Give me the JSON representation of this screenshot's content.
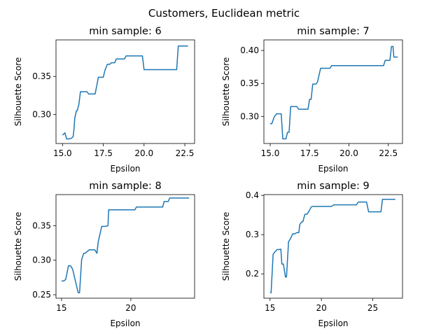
{
  "figure": {
    "title": "Customers, Euclidean metric",
    "line_color": "#1f77b4"
  },
  "chart_data": [
    {
      "type": "line",
      "title": "min sample: 6",
      "xlabel": "Epsilon",
      "ylabel": "Silhouette Score",
      "xticks": [
        15.0,
        17.5,
        20.0,
        22.5
      ],
      "xtick_labels": [
        "15.0",
        "17.5",
        "20.0",
        "22.5"
      ],
      "yticks": [
        0.3,
        0.35
      ],
      "ytick_labels": [
        "0.30",
        "0.35"
      ],
      "xlim": [
        14.6,
        23.1
      ],
      "ylim": [
        0.262,
        0.398
      ],
      "series": [
        {
          "x": [
            15.0,
            15.15,
            15.25,
            15.4,
            15.55,
            15.65,
            15.7,
            15.75,
            15.85,
            15.9,
            16.0,
            16.1,
            16.5,
            16.6,
            17.0,
            17.1,
            17.2,
            17.5,
            17.6,
            17.75,
            17.9,
            18.0,
            18.2,
            18.3,
            18.5,
            18.8,
            18.9,
            19.1,
            19.9,
            20.0,
            22.0,
            22.1,
            22.7
          ],
          "y": [
            0.273,
            0.276,
            0.268,
            0.268,
            0.269,
            0.271,
            0.28,
            0.295,
            0.305,
            0.305,
            0.313,
            0.33,
            0.33,
            0.327,
            0.327,
            0.338,
            0.349,
            0.349,
            0.358,
            0.366,
            0.366,
            0.368,
            0.368,
            0.373,
            0.373,
            0.373,
            0.377,
            0.377,
            0.377,
            0.359,
            0.359,
            0.39,
            0.39
          ]
        }
      ]
    },
    {
      "type": "line",
      "title": "min sample: 7",
      "xlabel": "Epsilon",
      "ylabel": "Silhouette Score",
      "xticks": [
        15.0,
        17.5,
        20.0,
        22.5
      ],
      "xtick_labels": [
        "15.0",
        "17.5",
        "20.0",
        "22.5"
      ],
      "yticks": [
        0.3,
        0.35,
        0.4
      ],
      "ytick_labels": [
        "0.30",
        "0.35",
        "0.40"
      ],
      "xlim": [
        14.6,
        23.4
      ],
      "ylim": [
        0.259,
        0.416
      ],
      "series": [
        {
          "x": [
            15.0,
            15.1,
            15.25,
            15.4,
            15.7,
            15.8,
            16.0,
            16.1,
            16.2,
            16.3,
            16.7,
            16.8,
            17.4,
            17.5,
            17.6,
            17.7,
            17.9,
            18.0,
            18.2,
            18.3,
            18.8,
            18.9,
            22.2,
            22.3,
            22.6,
            22.7,
            22.8,
            22.85,
            23.1
          ],
          "y": [
            0.289,
            0.289,
            0.299,
            0.304,
            0.304,
            0.266,
            0.266,
            0.276,
            0.276,
            0.315,
            0.315,
            0.311,
            0.311,
            0.326,
            0.326,
            0.349,
            0.349,
            0.352,
            0.373,
            0.373,
            0.373,
            0.377,
            0.377,
            0.385,
            0.385,
            0.406,
            0.406,
            0.39,
            0.39
          ]
        }
      ]
    },
    {
      "type": "line",
      "title": "min sample: 8",
      "xlabel": "Epsilon",
      "ylabel": "Silhouette Score",
      "xticks": [
        15,
        20
      ],
      "xtick_labels": [
        "15",
        "20"
      ],
      "yticks": [
        0.25,
        0.3,
        0.35
      ],
      "ytick_labels": [
        "0.25",
        "0.30",
        "0.35"
      ],
      "xlim": [
        14.6,
        24.6
      ],
      "ylim": [
        0.245,
        0.395
      ],
      "series": [
        {
          "x": [
            15.0,
            15.15,
            15.3,
            15.5,
            15.65,
            15.8,
            16.2,
            16.3,
            16.45,
            16.6,
            16.7,
            17.0,
            17.4,
            17.55,
            17.65,
            17.9,
            18.2,
            18.35,
            18.4,
            20.3,
            20.4,
            22.3,
            22.4,
            22.7,
            22.8,
            24.2
          ],
          "y": [
            0.27,
            0.27,
            0.272,
            0.292,
            0.292,
            0.287,
            0.253,
            0.253,
            0.301,
            0.31,
            0.31,
            0.315,
            0.315,
            0.31,
            0.327,
            0.349,
            0.349,
            0.35,
            0.373,
            0.373,
            0.377,
            0.377,
            0.385,
            0.385,
            0.39,
            0.39
          ]
        }
      ]
    },
    {
      "type": "line",
      "title": "min sample: 9",
      "xlabel": "Epsilon",
      "ylabel": "Silhouette Score",
      "xticks": [
        15,
        20,
        25
      ],
      "xtick_labels": [
        "15",
        "20",
        "25"
      ],
      "yticks": [
        0.2,
        0.3,
        0.4
      ],
      "ytick_labels": [
        "0.2",
        "0.3",
        "0.4"
      ],
      "xlim": [
        14.4,
        27.9
      ],
      "ylim": [
        0.138,
        0.402
      ],
      "series": [
        {
          "x": [
            15.0,
            15.1,
            15.3,
            15.5,
            15.7,
            15.9,
            16.05,
            16.15,
            16.3,
            16.5,
            16.6,
            16.8,
            17.0,
            17.2,
            17.4,
            17.6,
            17.8,
            17.9,
            18.1,
            18.2,
            18.3,
            18.4,
            18.6,
            18.8,
            19.0,
            19.1,
            21.0,
            21.2,
            23.4,
            23.6,
            24.4,
            24.6,
            25.8,
            25.95,
            27.2
          ],
          "y": [
            0.152,
            0.152,
            0.25,
            0.257,
            0.262,
            0.262,
            0.263,
            0.225,
            0.225,
            0.192,
            0.192,
            0.282,
            0.29,
            0.302,
            0.302,
            0.305,
            0.305,
            0.326,
            0.333,
            0.333,
            0.343,
            0.352,
            0.352,
            0.36,
            0.37,
            0.372,
            0.372,
            0.376,
            0.376,
            0.383,
            0.383,
            0.358,
            0.358,
            0.39,
            0.39
          ]
        }
      ]
    }
  ]
}
